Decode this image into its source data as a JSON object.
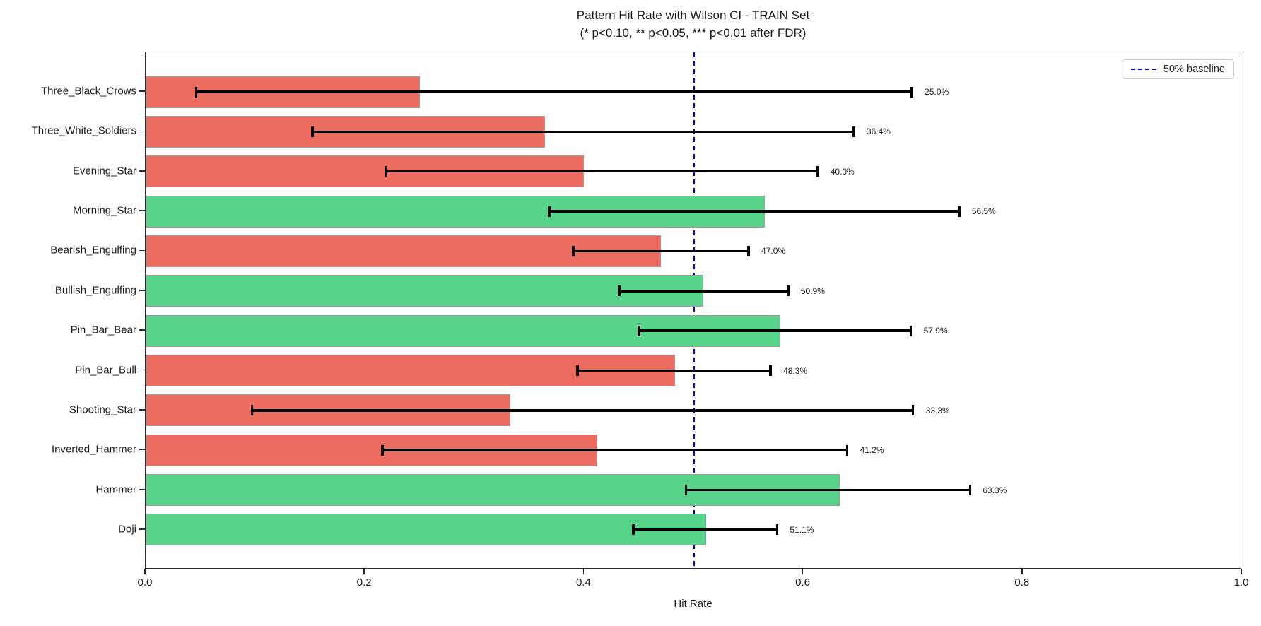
{
  "figure": {
    "title": "Pattern Hit Rate with Wilson CI - TRAIN Set",
    "subtitle": "(* p<0.10, ** p<0.05, *** p<0.01 after FDR)"
  },
  "legend": {
    "label": "50% baseline"
  },
  "colors": {
    "bar_red": "#ec6c5f",
    "bar_green": "#58d48a",
    "bar_edge": "#9c9c9c",
    "error_bar": "#000000",
    "baseline_blue": "#0000ee",
    "spine": "#2b2b2b"
  },
  "chart_data": {
    "type": "bar",
    "orientation": "horizontal",
    "title": "Pattern Hit Rate with Wilson CI - TRAIN Set",
    "subtitle": "(* p<0.10, ** p<0.05, *** p<0.01 after FDR)",
    "xlabel": "Hit Rate",
    "ylabel": "",
    "xlim": [
      0.0,
      1.0
    ],
    "grid": false,
    "legend_position": "upper right",
    "x_ticks": [
      {
        "label": "0.0",
        "value": 0.0
      },
      {
        "label": "0.2",
        "value": 0.2
      },
      {
        "label": "0.4",
        "value": 0.4
      },
      {
        "label": "0.6",
        "value": 0.6
      },
      {
        "label": "0.8",
        "value": 0.8
      },
      {
        "label": "1.0",
        "value": 1.0
      }
    ],
    "baseline": {
      "value": 0.5,
      "label": "50% baseline",
      "style": "dashed",
      "color": "#0000ee"
    },
    "bars": [
      {
        "label": "Three_Black_Crows",
        "value": 0.25,
        "value_label": "25.0%",
        "ci_low": 0.046,
        "ci_high": 0.699,
        "color": "red"
      },
      {
        "label": "Three_White_Soldiers",
        "value": 0.364,
        "value_label": "36.4%",
        "ci_low": 0.152,
        "ci_high": 0.646,
        "color": "red"
      },
      {
        "label": "Evening_Star",
        "value": 0.4,
        "value_label": "40.0%",
        "ci_low": 0.219,
        "ci_high": 0.613,
        "color": "red"
      },
      {
        "label": "Morning_Star",
        "value": 0.565,
        "value_label": "56.5%",
        "ci_low": 0.368,
        "ci_high": 0.742,
        "color": "green"
      },
      {
        "label": "Bearish_Engulfing",
        "value": 0.47,
        "value_label": "47.0%",
        "ci_low": 0.39,
        "ci_high": 0.55,
        "color": "red"
      },
      {
        "label": "Bullish_Engulfing",
        "value": 0.509,
        "value_label": "50.9%",
        "ci_low": 0.432,
        "ci_high": 0.586,
        "color": "green"
      },
      {
        "label": "Pin_Bar_Bear",
        "value": 0.579,
        "value_label": "57.9%",
        "ci_low": 0.45,
        "ci_high": 0.698,
        "color": "green"
      },
      {
        "label": "Pin_Bar_Bull",
        "value": 0.483,
        "value_label": "48.3%",
        "ci_low": 0.394,
        "ci_high": 0.57,
        "color": "red"
      },
      {
        "label": "Shooting_Star",
        "value": 0.333,
        "value_label": "33.3%",
        "ci_low": 0.097,
        "ci_high": 0.7,
        "color": "red"
      },
      {
        "label": "Inverted_Hammer",
        "value": 0.412,
        "value_label": "41.2%",
        "ci_low": 0.216,
        "ci_high": 0.64,
        "color": "red"
      },
      {
        "label": "Hammer",
        "value": 0.633,
        "value_label": "63.3%",
        "ci_low": 0.493,
        "ci_high": 0.752,
        "color": "green"
      },
      {
        "label": "Doji",
        "value": 0.511,
        "value_label": "51.1%",
        "ci_low": 0.445,
        "ci_high": 0.576,
        "color": "green"
      }
    ]
  }
}
